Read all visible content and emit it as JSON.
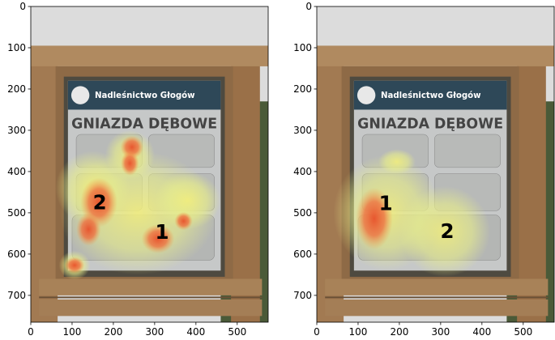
{
  "chart_data": [
    {
      "type": "image",
      "xlim": [
        0,
        575
      ],
      "ylim": [
        765,
        0
      ],
      "xticks": [
        0,
        100,
        200,
        300,
        400,
        500
      ],
      "yticks": [
        0,
        100,
        200,
        300,
        400,
        500,
        600,
        700
      ],
      "annotations": [
        "1",
        "2"
      ],
      "image_text": [
        "Nadleśnictwo Głogów",
        "GNIAZDA DĘBOWE"
      ]
    },
    {
      "type": "image",
      "xlim": [
        0,
        575
      ],
      "ylim": [
        765,
        0
      ],
      "xticks": [
        0,
        100,
        200,
        300,
        400,
        500
      ],
      "yticks": [
        0,
        100,
        200,
        300,
        400,
        500,
        600,
        700
      ],
      "annotations": [
        "1",
        "2"
      ],
      "image_text": [
        "Nadleśnictwo Głogów",
        "GNIAZDA DĘBOWE"
      ]
    }
  ]
}
